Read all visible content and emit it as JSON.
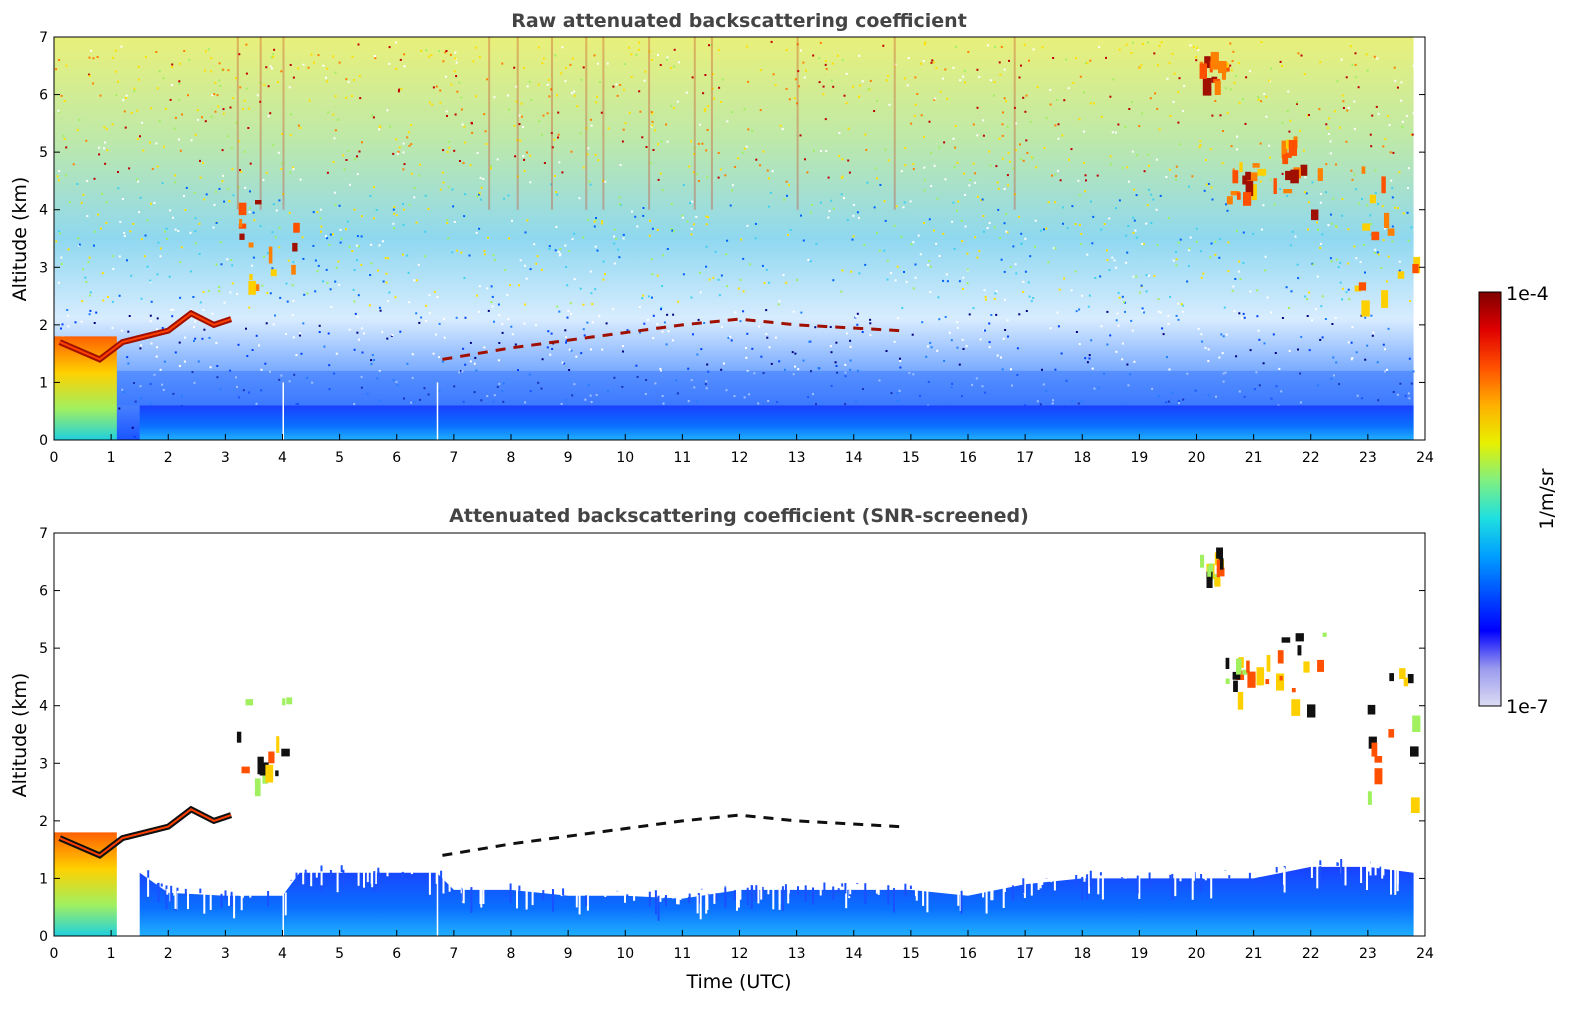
{
  "figure": {
    "colorbar": {
      "label": "1/m/sr",
      "max_label": "1e-4",
      "min_label": "1e-7",
      "scale": "log",
      "colormap": [
        "#dcdcf5",
        "#9a9aee",
        "#0000ff",
        "#0050ff",
        "#00a0ff",
        "#20e0e0",
        "#80f080",
        "#e8f000",
        "#ffb000",
        "#ff5000",
        "#e00000",
        "#800000"
      ]
    }
  },
  "chart_data": [
    {
      "type": "heatmap",
      "title": "Raw attenuated backscattering coefficient",
      "xlabel": "",
      "ylabel": "Altitude (km)",
      "xlim": [
        0,
        24
      ],
      "ylim": [
        0,
        7
      ],
      "xticks": [
        "0",
        "1",
        "2",
        "3",
        "4",
        "5",
        "6",
        "7",
        "8",
        "9",
        "10",
        "11",
        "12",
        "13",
        "14",
        "15",
        "16",
        "17",
        "18",
        "19",
        "20",
        "21",
        "22",
        "23",
        "24"
      ],
      "yticks": [
        "0",
        "1",
        "2",
        "3",
        "4",
        "5",
        "6",
        "7"
      ],
      "data_end_time": 23.8,
      "features": [
        {
          "kind": "boundary_layer_aerosol",
          "time_range": [
            1.5,
            23.8
          ],
          "altitude_top": 0.6
        },
        {
          "kind": "low_cloud",
          "time_range": [
            0,
            1.1
          ],
          "altitude_range": [
            0,
            1.8
          ]
        },
        {
          "kind": "cloud_layer",
          "points": [
            [
              0.1,
              1.7
            ],
            [
              0.8,
              1.4
            ],
            [
              1.2,
              1.7
            ],
            [
              2.0,
              1.9
            ],
            [
              2.4,
              2.2
            ],
            [
              2.8,
              2.0
            ],
            [
              3.1,
              2.1
            ]
          ]
        },
        {
          "kind": "mid_cloud",
          "time_range": [
            3.2,
            4.2
          ],
          "altitude_range": [
            2.7,
            4.2
          ]
        },
        {
          "kind": "thin_cloud_layer",
          "points": [
            [
              6.8,
              1.4
            ],
            [
              8.0,
              1.6
            ],
            [
              9.5,
              1.8
            ],
            [
              11.0,
              2.0
            ],
            [
              12.0,
              2.1
            ],
            [
              13.0,
              2.0
            ],
            [
              14.8,
              1.9
            ]
          ]
        },
        {
          "kind": "upper_cloud",
          "time_range": [
            20.0,
            20.5
          ],
          "altitude_range": [
            6.2,
            6.8
          ]
        },
        {
          "kind": "upper_cloud",
          "time_range": [
            20.5,
            21.1
          ],
          "altitude_range": [
            4.2,
            4.9
          ]
        },
        {
          "kind": "upper_cloud",
          "time_range": [
            21.2,
            22.3
          ],
          "altitude_range": [
            4.0,
            5.3
          ]
        },
        {
          "kind": "upper_cloud",
          "time_range": [
            22.7,
            23.8
          ],
          "altitude_range": [
            2.4,
            4.8
          ]
        }
      ]
    },
    {
      "type": "heatmap",
      "title": "Attenuated backscattering coefficient (SNR-screened)",
      "xlabel": "Time (UTC)",
      "ylabel": "Altitude (km)",
      "xlim": [
        0,
        24
      ],
      "ylim": [
        0,
        7
      ],
      "xticks": [
        "0",
        "1",
        "2",
        "3",
        "4",
        "5",
        "6",
        "7",
        "8",
        "9",
        "10",
        "11",
        "12",
        "13",
        "14",
        "15",
        "16",
        "17",
        "18",
        "19",
        "20",
        "21",
        "22",
        "23",
        "24"
      ],
      "yticks": [
        "0",
        "1",
        "2",
        "3",
        "4",
        "5",
        "6",
        "7"
      ],
      "data_end_time": 23.8,
      "aerosol_top_km": [
        [
          1.5,
          1.1
        ],
        [
          2.0,
          0.75
        ],
        [
          3.0,
          0.7
        ],
        [
          4.0,
          0.7
        ],
        [
          4.3,
          1.1
        ],
        [
          6.7,
          1.1
        ],
        [
          7.0,
          0.8
        ],
        [
          8.0,
          0.8
        ],
        [
          9.0,
          0.7
        ],
        [
          10.0,
          0.7
        ],
        [
          11.0,
          0.65
        ],
        [
          12.0,
          0.8
        ],
        [
          13.0,
          0.8
        ],
        [
          14.0,
          0.8
        ],
        [
          15.0,
          0.8
        ],
        [
          16.0,
          0.7
        ],
        [
          17.0,
          0.9
        ],
        [
          18.0,
          1.0
        ],
        [
          19.0,
          1.0
        ],
        [
          20.0,
          1.0
        ],
        [
          21.0,
          1.0
        ],
        [
          22.0,
          1.2
        ],
        [
          23.0,
          1.2
        ],
        [
          23.8,
          1.1
        ]
      ]
    }
  ]
}
